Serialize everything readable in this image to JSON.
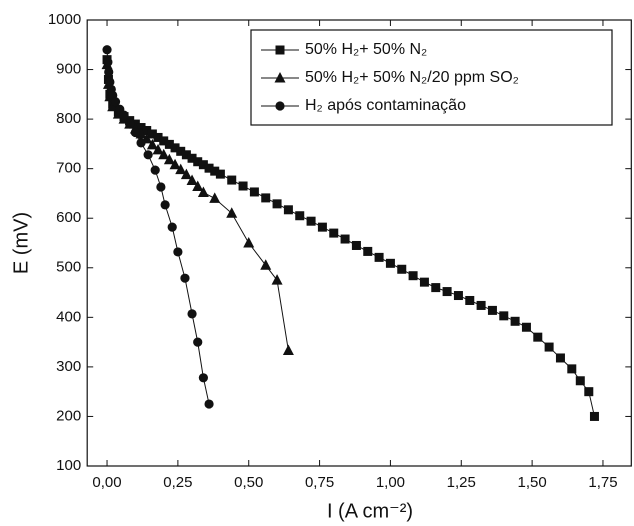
{
  "chart_data": {
    "type": "line",
    "xlabel": "I (A cm⁻²)",
    "ylabel": "E (mV)",
    "xlim": [
      -0.07,
      1.85
    ],
    "ylim": [
      100,
      1000
    ],
    "xticks": [
      {
        "value": 0,
        "label": "0,00"
      },
      {
        "value": 0.25,
        "label": "0,25"
      },
      {
        "value": 0.5,
        "label": "0,50"
      },
      {
        "value": 0.75,
        "label": "0,75"
      },
      {
        "value": 1,
        "label": "1,00"
      },
      {
        "value": 1.25,
        "label": "1,25"
      },
      {
        "value": 1.5,
        "label": "1,50"
      },
      {
        "value": 1.75,
        "label": "1,75"
      }
    ],
    "yticks": [
      100,
      200,
      300,
      400,
      500,
      600,
      700,
      800,
      900,
      1000
    ],
    "grid": false,
    "legend": "upper right",
    "series": [
      {
        "name": "50% H₂+ 50% N₂",
        "color": "#111111",
        "marker": "square",
        "x": [
          0,
          0.005,
          0.01,
          0.02,
          0.04,
          0.06,
          0.08,
          0.1,
          0.12,
          0.14,
          0.16,
          0.18,
          0.2,
          0.22,
          0.24,
          0.26,
          0.28,
          0.3,
          0.32,
          0.34,
          0.36,
          0.38,
          0.4,
          0.44,
          0.48,
          0.52,
          0.56,
          0.6,
          0.64,
          0.68,
          0.72,
          0.76,
          0.8,
          0.84,
          0.88,
          0.92,
          0.96,
          1,
          1.04,
          1.08,
          1.12,
          1.16,
          1.2,
          1.24,
          1.28,
          1.32,
          1.36,
          1.4,
          1.44,
          1.48,
          1.52,
          1.56,
          1.6,
          1.64,
          1.67,
          1.7,
          1.72
        ],
        "values": [
          920,
          880,
          850,
          830,
          815,
          805,
          797,
          790,
          783,
          777,
          770,
          763,
          756,
          749,
          742,
          735,
          728,
          721,
          714,
          708,
          701,
          695,
          689,
          677,
          665,
          653,
          641,
          629,
          617,
          605,
          594,
          582,
          570,
          558,
          545,
          533,
          521,
          509,
          497,
          484,
          471,
          460,
          452,
          444,
          434,
          424,
          414,
          403,
          392,
          380,
          360,
          340,
          318,
          296,
          272,
          250,
          200
        ]
      },
      {
        "name": "50% H₂+ 50% N₂/20 ppm SO₂",
        "color": "#111111",
        "marker": "triangle",
        "x": [
          0,
          0.005,
          0.01,
          0.02,
          0.04,
          0.06,
          0.08,
          0.1,
          0.12,
          0.14,
          0.16,
          0.18,
          0.2,
          0.22,
          0.24,
          0.26,
          0.28,
          0.3,
          0.32,
          0.34,
          0.38,
          0.44,
          0.5,
          0.56,
          0.6,
          0.64
        ],
        "values": [
          910,
          870,
          845,
          825,
          810,
          800,
          790,
          780,
          770,
          760,
          748,
          738,
          728,
          718,
          708,
          698,
          688,
          676,
          664,
          652,
          640,
          610,
          550,
          505,
          475,
          333
        ]
      },
      {
        "name": "H₂ após contaminação",
        "color": "#111111",
        "marker": "circle",
        "x": [
          0,
          0.003,
          0.006,
          0.01,
          0.015,
          0.02,
          0.03,
          0.045,
          0.06,
          0.08,
          0.1,
          0.12,
          0.145,
          0.17,
          0.19,
          0.205,
          0.23,
          0.25,
          0.275,
          0.3,
          0.32,
          0.34,
          0.36
        ],
        "values": [
          940,
          915,
          895,
          875,
          860,
          848,
          835,
          820,
          808,
          790,
          773,
          752,
          728,
          697,
          663,
          627,
          582,
          532,
          479,
          407,
          350,
          278,
          225
        ]
      }
    ]
  }
}
